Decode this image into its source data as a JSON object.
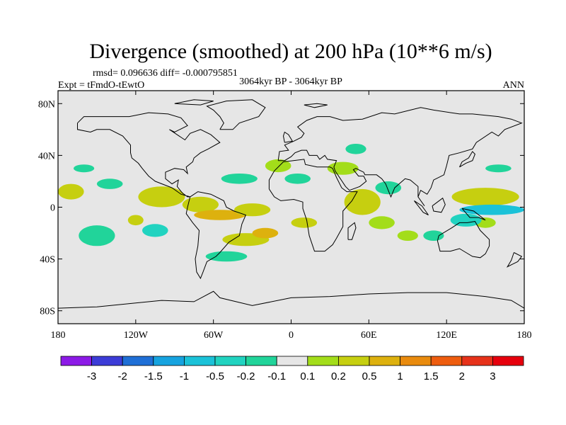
{
  "chart_data": {
    "type": "heatmap",
    "title": "Divergence (smoothed) at 200 hPa (10**6 m/s)",
    "stats": "rmsd= 0.096636 diff= -0.000795851",
    "experiment": "Expt = tFmdO-tEwtO",
    "period": "3064kyr BP - 3064kyr BP",
    "season": "ANN",
    "xlim": [
      -180,
      180
    ],
    "ylim": [
      -90,
      90
    ],
    "x_ticks": [
      {
        "value": -180,
        "label": "180"
      },
      {
        "value": -120,
        "label": "120W"
      },
      {
        "value": -60,
        "label": "60W"
      },
      {
        "value": 0,
        "label": "0"
      },
      {
        "value": 60,
        "label": "60E"
      },
      {
        "value": 120,
        "label": "120E"
      },
      {
        "value": 180,
        "label": "180"
      }
    ],
    "y_ticks": [
      {
        "value": 80,
        "label": "80N"
      },
      {
        "value": 40,
        "label": "40N"
      },
      {
        "value": 0,
        "label": "0"
      },
      {
        "value": -40,
        "label": "40S"
      },
      {
        "value": -80,
        "label": "80S"
      }
    ],
    "levels": [
      "-3",
      "-2",
      "-1.5",
      "-1",
      "-0.5",
      "-0.2",
      "-0.1",
      "0.1",
      "0.2",
      "0.5",
      "1",
      "1.5",
      "2",
      "3"
    ],
    "colors": [
      "#8c1ae6",
      "#3c3cd7",
      "#1f6fd6",
      "#16a3df",
      "#1bc2d8",
      "#21d3c0",
      "#21d49a",
      "#e6e6e6",
      "#a3dd1a",
      "#c6cf10",
      "#ddb10e",
      "#e98b0e",
      "#ee5d0f",
      "#e6321a",
      "#e6000d"
    ],
    "background_color": "#e6e6e6",
    "regions": [
      {
        "lon": -170,
        "lat": 12,
        "rlon": 10,
        "rlat": 6,
        "value": 0.3
      },
      {
        "lon": -100,
        "lat": 8,
        "rlon": 18,
        "rlat": 8,
        "value": 0.4
      },
      {
        "lon": -70,
        "lat": 2,
        "rlon": 14,
        "rlat": 6,
        "value": 0.3
      },
      {
        "lon": -55,
        "lat": -6,
        "rlon": 20,
        "rlat": 4,
        "value": 0.5
      },
      {
        "lon": -30,
        "lat": -2,
        "rlon": 14,
        "rlat": 5,
        "value": 0.3
      },
      {
        "lon": -35,
        "lat": -25,
        "rlon": 18,
        "rlat": 5,
        "value": 0.3
      },
      {
        "lon": -20,
        "lat": -20,
        "rlon": 10,
        "rlat": 4,
        "value": 0.6
      },
      {
        "lon": -10,
        "lat": 32,
        "rlon": 10,
        "rlat": 5,
        "value": 0.15
      },
      {
        "lon": 10,
        "lat": -12,
        "rlon": 10,
        "rlat": 4,
        "value": 0.3
      },
      {
        "lon": 40,
        "lat": 30,
        "rlon": 12,
        "rlat": 5,
        "value": 0.15
      },
      {
        "lon": 55,
        "lat": 4,
        "rlon": 14,
        "rlat": 10,
        "value": 0.3
      },
      {
        "lon": 70,
        "lat": -12,
        "rlon": 10,
        "rlat": 5,
        "value": 0.15
      },
      {
        "lon": 90,
        "lat": -22,
        "rlon": 8,
        "rlat": 4,
        "value": 0.15
      },
      {
        "lon": 150,
        "lat": 8,
        "rlon": 26,
        "rlat": 7,
        "value": 0.3
      },
      {
        "lon": 150,
        "lat": -12,
        "rlon": 8,
        "rlat": 4,
        "value": 0.15
      },
      {
        "lon": -120,
        "lat": -10,
        "rlon": 6,
        "rlat": 4,
        "value": 0.3
      },
      {
        "lon": -140,
        "lat": 18,
        "rlon": 10,
        "rlat": 4,
        "value": -0.15
      },
      {
        "lon": -160,
        "lat": 30,
        "rlon": 8,
        "rlat": 3,
        "value": -0.15
      },
      {
        "lon": -150,
        "lat": -22,
        "rlon": 14,
        "rlat": 8,
        "value": -0.15
      },
      {
        "lon": -105,
        "lat": -18,
        "rlon": 10,
        "rlat": 5,
        "value": -0.3
      },
      {
        "lon": -40,
        "lat": 22,
        "rlon": 14,
        "rlat": 4,
        "value": -0.15
      },
      {
        "lon": -50,
        "lat": -38,
        "rlon": 16,
        "rlat": 4,
        "value": -0.15
      },
      {
        "lon": 5,
        "lat": 22,
        "rlon": 10,
        "rlat": 4,
        "value": -0.15
      },
      {
        "lon": 50,
        "lat": 45,
        "rlon": 8,
        "rlat": 4,
        "value": -0.15
      },
      {
        "lon": 75,
        "lat": 15,
        "rlon": 10,
        "rlat": 5,
        "value": -0.15
      },
      {
        "lon": 160,
        "lat": 30,
        "rlon": 10,
        "rlat": 3,
        "value": -0.15
      },
      {
        "lon": 155,
        "lat": -2,
        "rlon": 25,
        "rlat": 4,
        "value": -0.6
      },
      {
        "lon": 135,
        "lat": -10,
        "rlon": 12,
        "rlat": 5,
        "value": -0.3
      },
      {
        "lon": 110,
        "lat": -22,
        "rlon": 8,
        "rlat": 4,
        "value": -0.15
      }
    ]
  }
}
